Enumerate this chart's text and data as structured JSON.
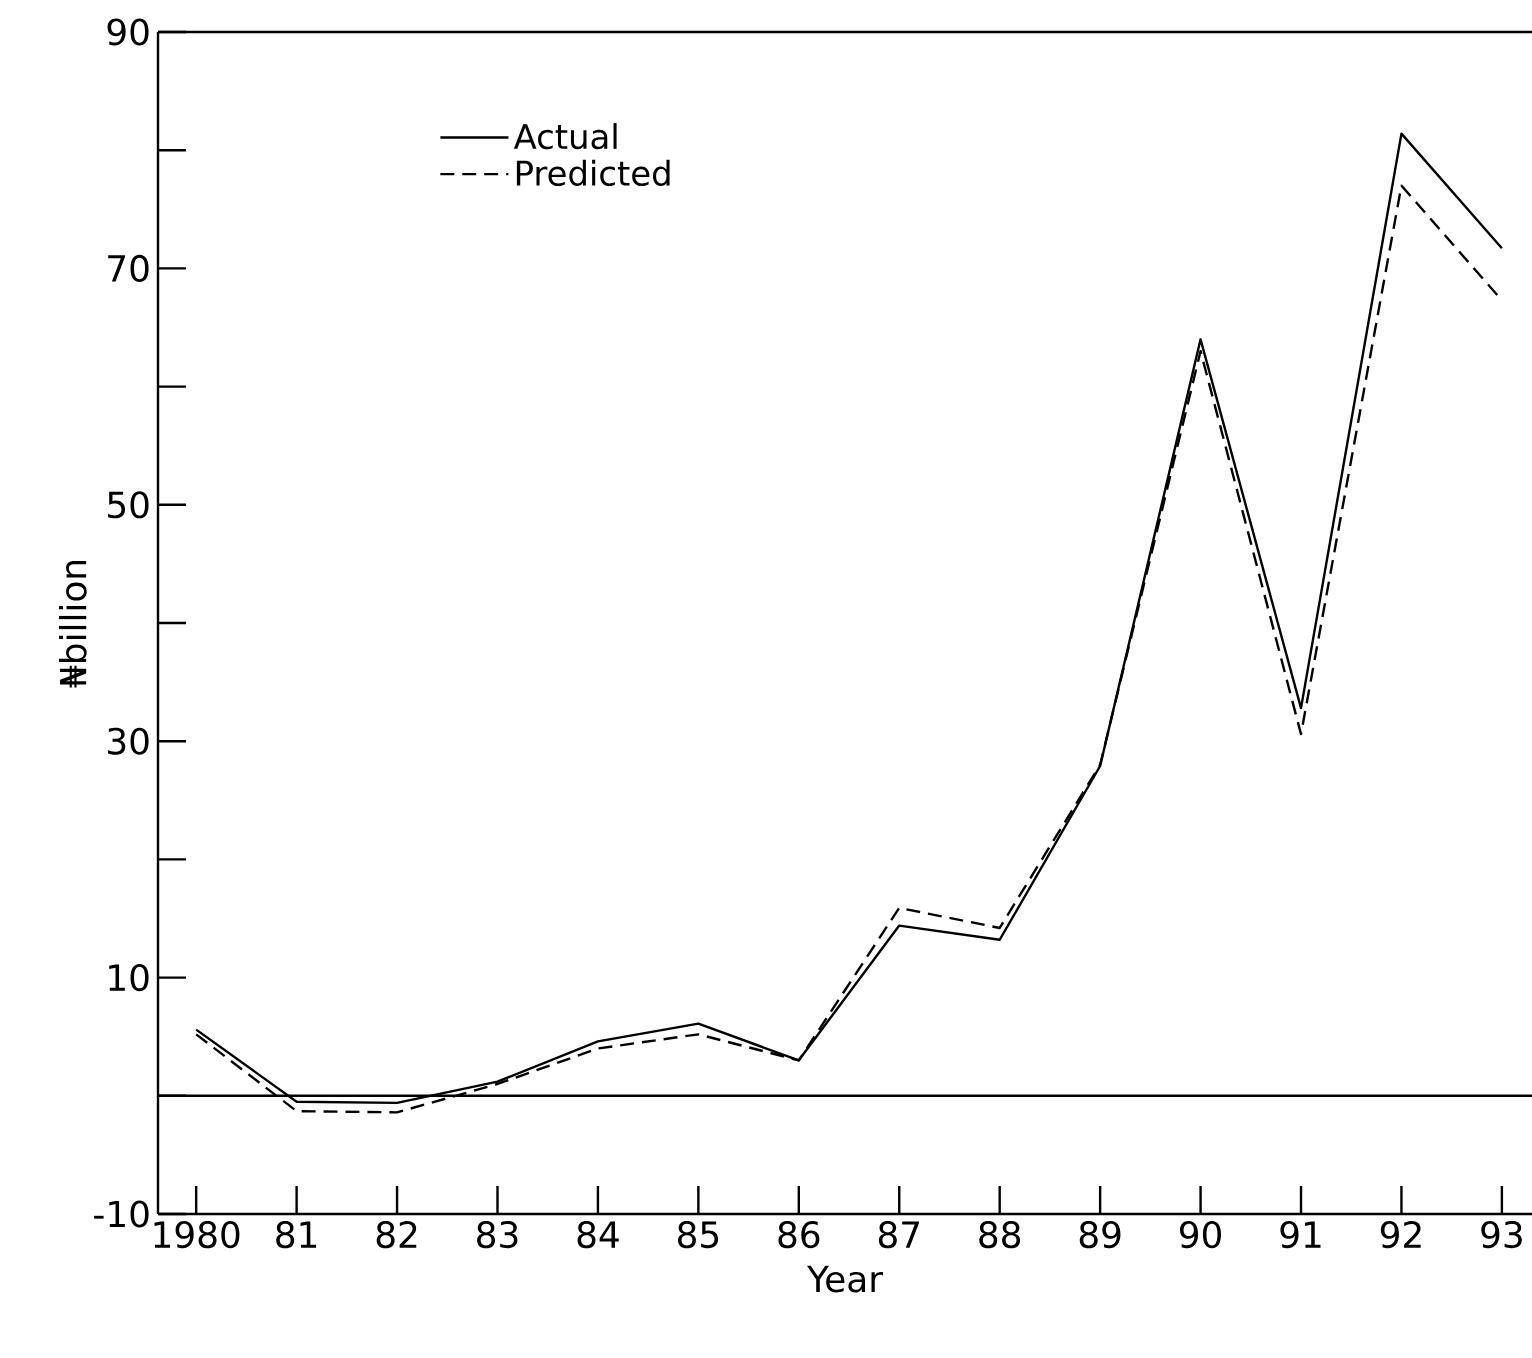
{
  "chart_data": {
    "type": "line",
    "xlabel": "Year",
    "ylabel": "₦billion",
    "categories": [
      "1980",
      "81",
      "82",
      "83",
      "84",
      "85",
      "86",
      "87",
      "88",
      "89",
      "90",
      "91",
      "92",
      "93"
    ],
    "series": [
      {
        "name": "Actual",
        "color": "#000000",
        "line_style": "solid",
        "values": [
          5.6,
          -0.5,
          -0.6,
          1.2,
          4.6,
          6.1,
          3.0,
          14.4,
          13.2,
          27.9,
          64,
          32.8,
          81.4,
          71.7
        ]
      },
      {
        "name": "Predicted",
        "color": "#000000",
        "line_style": "dashed",
        "values": [
          5.2,
          -1.3,
          -1.4,
          1.0,
          4.0,
          5.2,
          3.0,
          15.9,
          14.2,
          28.0,
          63,
          30.6,
          77,
          67.3
        ]
      }
    ],
    "ylim": [
      -10,
      90
    ],
    "yticks": [
      -10,
      {
        "value": 0,
        "label": null
      },
      10,
      {
        "value": 20,
        "label": null
      },
      30,
      {
        "value": 40,
        "label": null
      },
      50,
      {
        "value": 60,
        "label": null
      },
      70,
      {
        "value": 80,
        "label": null
      },
      90
    ],
    "ref_lines": [
      {
        "axis": "y",
        "value": 0,
        "color": "#000000",
        "line_style": "solid"
      }
    ],
    "legend": "top left",
    "marker": "none"
  }
}
